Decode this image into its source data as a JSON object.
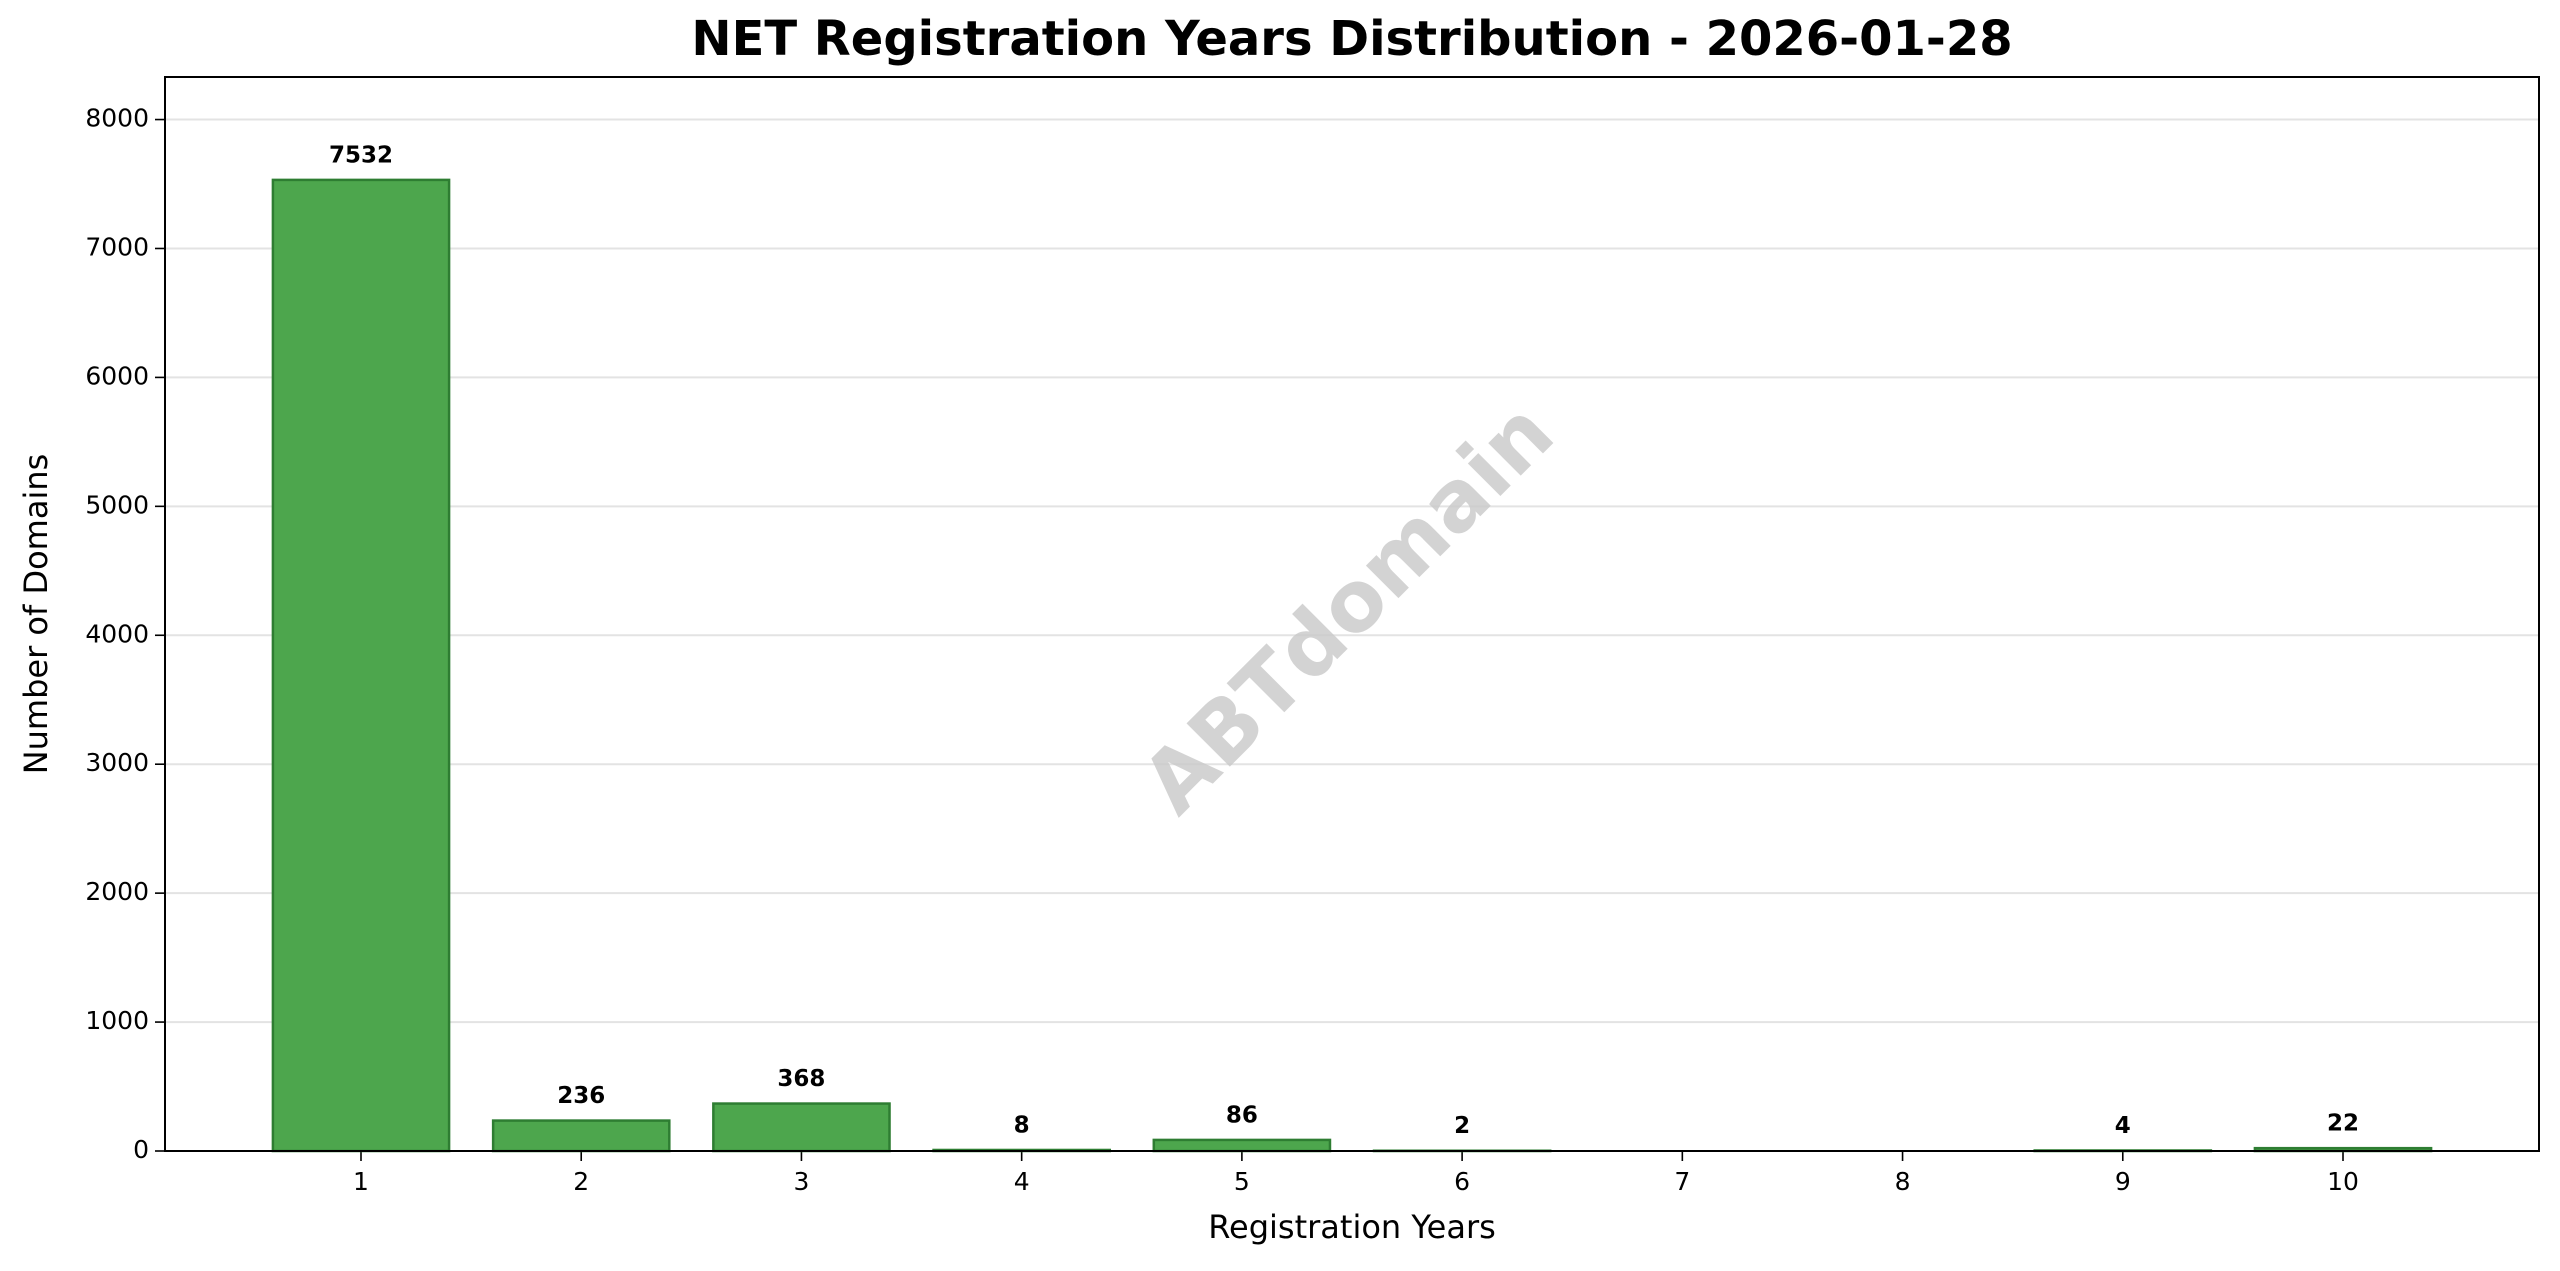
{
  "chart_data": {
    "type": "bar",
    "title": "NET Registration Years Distribution - 2026-01-28",
    "xlabel": "Registration Years",
    "ylabel": "Number of Domains",
    "watermark": "ABTdomain",
    "x": [
      1,
      2,
      3,
      4,
      5,
      6,
      9,
      10
    ],
    "values": [
      7532,
      236,
      368,
      8,
      86,
      2,
      4,
      22
    ],
    "color": "#4da64d",
    "edgecolor": "#2e7d32",
    "xlim": [
      0.11,
      10.89
    ],
    "xticks": [
      1,
      2,
      3,
      4,
      5,
      6,
      7,
      8,
      9,
      10
    ],
    "ylim": [
      0,
      8330
    ],
    "yticks": [
      0,
      1000,
      2000,
      3000,
      4000,
      5000,
      6000,
      7000,
      8000
    ],
    "grid": true
  }
}
